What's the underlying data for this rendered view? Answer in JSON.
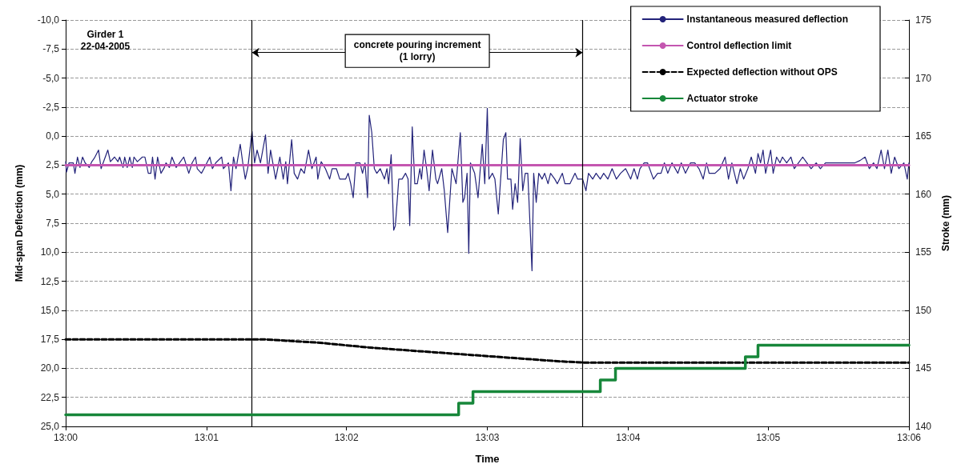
{
  "chart_data": {
    "type": "line",
    "xlabel": "Time",
    "ylabel": "Mid-span Deflection (mm)",
    "y2label": "Stroke (mm)",
    "xlim": [
      13,
      13.1
    ],
    "xticks": [
      {
        "value": 13,
        "label": "13:00"
      },
      {
        "value": 13.0167,
        "label": "13:01"
      },
      {
        "value": 13.0333,
        "label": "13:02"
      },
      {
        "value": 13.05,
        "label": "13:03"
      },
      {
        "value": 13.0667,
        "label": "13:04"
      },
      {
        "value": 13.0833,
        "label": "13:05"
      },
      {
        "value": 13.1,
        "label": "13:06"
      }
    ],
    "ylim": [
      25,
      -10
    ],
    "yticks": [
      {
        "value": -10,
        "label": "-10,0"
      },
      {
        "value": -7.5,
        "label": "-7,5"
      },
      {
        "value": -5,
        "label": "-5,0"
      },
      {
        "value": -2.5,
        "label": "-2,5"
      },
      {
        "value": 0,
        "label": "0,0"
      },
      {
        "value": 2.5,
        "label": "2,5"
      },
      {
        "value": 5,
        "label": "5,0"
      },
      {
        "value": 7.5,
        "label": "7,5"
      },
      {
        "value": 10,
        "label": "10,0"
      },
      {
        "value": 12.5,
        "label": "12,5"
      },
      {
        "value": 15,
        "label": "15,0"
      },
      {
        "value": 17.5,
        "label": "17,5"
      },
      {
        "value": 20,
        "label": "20,0"
      },
      {
        "value": 22.5,
        "label": "22,5"
      },
      {
        "value": 25,
        "label": "25,0"
      }
    ],
    "y2lim": [
      140,
      175
    ],
    "y2ticks": [
      140,
      145,
      150,
      155,
      160,
      165,
      170,
      175
    ],
    "grid": "y",
    "legend": "top right",
    "marker": "none",
    "series": [
      {
        "name": "Instantaneous measured deflection",
        "color": "#23237a",
        "x": [
          13.0,
          13.0001,
          13.0004,
          13.0009,
          13.0011,
          13.0014,
          13.0017,
          13.002,
          13.0023,
          13.0028,
          13.0031,
          13.0034,
          13.0039,
          13.0042,
          13.0045,
          13.005,
          13.0053,
          13.0058,
          13.0062,
          13.0064,
          13.0068,
          13.007,
          13.0073,
          13.0076,
          13.0079,
          13.0081,
          13.0085,
          13.0091,
          13.0094,
          13.0098,
          13.0101,
          13.0103,
          13.0106,
          13.0109,
          13.0113,
          13.0117,
          13.0119,
          13.0123,
          13.0126,
          13.0131,
          13.0135,
          13.014,
          13.0146,
          13.015,
          13.0154,
          13.0156,
          13.0161,
          13.0164,
          13.0171,
          13.0174,
          13.0178,
          13.0185,
          13.0187,
          13.0193,
          13.0196,
          13.0199,
          13.0202,
          13.0207,
          13.021,
          13.0213,
          13.0216,
          13.0221,
          13.0224,
          13.0227,
          13.0231,
          13.0237,
          13.024,
          13.0243,
          13.0249,
          13.0254,
          13.0258,
          13.0261,
          13.0263,
          13.0268,
          13.0271,
          13.0275,
          13.0279,
          13.0283,
          13.0288,
          13.0292,
          13.0297,
          13.0299,
          13.0303,
          13.0308,
          13.0313,
          13.0316,
          13.0321,
          13.0325,
          13.0332,
          13.0335,
          13.0338,
          13.0341,
          13.0344,
          13.0349,
          13.0352,
          13.0355,
          13.0358,
          13.036,
          13.0363,
          13.0366,
          13.0369,
          13.0373,
          13.0378,
          13.0381,
          13.0383,
          13.0386,
          13.0389,
          13.0391,
          13.0395,
          13.0399,
          13.0403,
          13.0406,
          13.0408,
          13.0411,
          13.0414,
          13.0417,
          13.042,
          13.0422,
          13.0425,
          13.0428,
          13.0431,
          13.0435,
          13.0439,
          13.0441,
          13.0446,
          13.0449,
          13.0453,
          13.0458,
          13.0463,
          13.0468,
          13.0471,
          13.0473,
          13.0476,
          13.0478,
          13.048,
          13.0485,
          13.0489,
          13.0494,
          13.0497,
          13.05,
          13.0502,
          13.0506,
          13.0509,
          13.0513,
          13.0519,
          13.0522,
          13.0524,
          13.0528,
          13.053,
          13.0533,
          13.0536,
          13.0539,
          13.0542,
          13.0545,
          13.0548,
          13.0553,
          13.0555,
          13.0558,
          13.0561,
          13.0565,
          13.0568,
          13.0572,
          13.0575,
          13.058,
          13.0583,
          13.0589,
          13.0592,
          13.0598,
          13.0604,
          13.0607,
          13.0613,
          13.0617,
          13.062,
          13.0625,
          13.0629,
          13.0634,
          13.0638,
          13.0643,
          13.0648,
          13.0653,
          13.0658,
          13.0664,
          13.067,
          13.0674,
          13.0678,
          13.0681,
          13.0686,
          13.069,
          13.0697,
          13.0702,
          13.0706,
          13.071,
          13.0714,
          13.0719,
          13.0726,
          13.073,
          13.0735,
          13.0741,
          13.0746,
          13.0751,
          13.0756,
          13.076,
          13.0763,
          13.077,
          13.0776,
          13.0782,
          13.0786,
          13.079,
          13.0796,
          13.08,
          13.0804,
          13.0809,
          13.0813,
          13.0818,
          13.0821,
          13.0824,
          13.0827,
          13.083,
          13.0836,
          13.0839,
          13.0843,
          13.0847,
          13.085,
          13.0855,
          13.086,
          13.0864,
          13.0869,
          13.0874,
          13.0879,
          13.0884,
          13.089,
          13.0895,
          13.0901,
          13.0907,
          13.0914,
          13.092,
          13.0928,
          13.0936,
          13.0942,
          13.0948,
          13.0953,
          13.0958,
          13.0962,
          13.0967,
          13.0971,
          13.0975,
          13.0979,
          13.0983,
          13.0988,
          13.0994,
          13.0998,
          13.1
        ],
        "values": [
          2.2,
          3.1,
          2.3,
          2.3,
          3.2,
          1.8,
          2.7,
          1.8,
          2.3,
          2.7,
          2.2,
          1.9,
          1.2,
          2.8,
          2.2,
          1.2,
          2.2,
          1.8,
          2.2,
          1.8,
          2.7,
          1.8,
          2.7,
          1.8,
          2.7,
          1.8,
          2.2,
          1.8,
          1.8,
          3.2,
          3.2,
          1.8,
          3.7,
          1.8,
          3.2,
          2.7,
          2.3,
          2.7,
          1.8,
          2.7,
          2.3,
          1.8,
          3.2,
          2.3,
          1.8,
          2.8,
          3.2,
          2.8,
          1.8,
          2.8,
          2.3,
          1.8,
          2.8,
          2.3,
          4.7,
          1.8,
          2.8,
          0.7,
          2.3,
          3.7,
          2.7,
          -0.4,
          2.3,
          1.2,
          2.3,
          -0.1,
          3.2,
          1.2,
          3.7,
          1.8,
          3.7,
          2.2,
          4.1,
          0.3,
          3.2,
          3.7,
          2.8,
          3.2,
          1.2,
          2.8,
          1.8,
          3.7,
          2.2,
          2.8,
          3.7,
          2.8,
          2.8,
          3.7,
          3.7,
          3.2,
          4.1,
          5.3,
          2.3,
          2.3,
          3.2,
          2.3,
          5.3,
          -1.8,
          -0.3,
          2.8,
          3.2,
          2.8,
          3.7,
          2.8,
          4.1,
          1.6,
          8.1,
          7.7,
          3.7,
          3.7,
          3.2,
          3.7,
          7.7,
          -0.8,
          4.1,
          4.1,
          2.8,
          3.7,
          1.2,
          2.8,
          4.7,
          1.2,
          3.7,
          4.1,
          2.8,
          4.7,
          8.3,
          2.8,
          4.1,
          -0.3,
          5.7,
          5.3,
          3.2,
          10.1,
          2.3,
          3.2,
          5.3,
          0.7,
          4.1,
          -2.4,
          3.7,
          3.2,
          3.7,
          6.7,
          0.3,
          -0.3,
          3.7,
          3.7,
          6.3,
          4.1,
          5.7,
          0.2,
          4.7,
          3.2,
          3.2,
          11.6,
          3.2,
          5.7,
          3.2,
          3.7,
          3.2,
          4.1,
          3.2,
          3.7,
          4.1,
          3.2,
          4.1,
          4.1,
          3.2,
          3.7,
          3.7,
          4.7,
          3.2,
          3.7,
          3.2,
          3.7,
          3.2,
          3.7,
          2.8,
          3.7,
          3.2,
          2.8,
          3.7,
          2.8,
          3.7,
          2.8,
          2.3,
          2.3,
          3.7,
          3.2,
          3.2,
          2.3,
          3.2,
          2.3,
          3.2,
          2.3,
          3.2,
          2.3,
          2.3,
          2.8,
          3.7,
          2.3,
          3.2,
          3.2,
          2.8,
          1.8,
          3.7,
          2.3,
          4.1,
          2.8,
          3.7,
          2.8,
          1.8,
          3.2,
          1.5,
          2.3,
          1.2,
          3.2,
          1.2,
          3.2,
          1.8,
          2.3,
          1.8,
          2.3,
          1.8,
          2.8,
          2.3,
          1.8,
          2.3,
          2.8,
          2.3,
          2.8,
          2.3,
          2.3,
          2.3,
          2.3,
          2.3,
          2.3,
          2.1,
          1.8,
          2.8,
          2.3,
          2.8,
          1.2,
          2.8,
          1.2,
          3.2,
          1.8,
          2.8,
          2.3,
          3.7,
          2.3
        ]
      },
      {
        "name": "Control deflection limit",
        "color": "#c456b0",
        "x": [
          13,
          13.1
        ],
        "values": [
          2.5,
          2.5
        ]
      },
      {
        "name": "Expected deflection without OPS",
        "color": "#000000",
        "line_style": "dashed",
        "x": [
          13,
          13.0235,
          13.0302,
          13.0359,
          13.0415,
          13.0472,
          13.0529,
          13.0586,
          13.0615,
          13.1
        ],
        "values": [
          17.5,
          17.5,
          17.8,
          18.2,
          18.5,
          18.8,
          19.1,
          19.4,
          19.5,
          19.5
        ]
      },
      {
        "name": "Actuator stroke",
        "type": "step",
        "axis": "y2",
        "color": "#17873a",
        "x": [
          13,
          13.0466,
          13.0483,
          13.0634,
          13.0652,
          13.0806,
          13.0821,
          13.1
        ],
        "values": [
          141,
          142,
          143,
          144,
          145,
          146,
          147,
          147
        ]
      }
    ],
    "ref_lines": [
      {
        "axis": "x",
        "value": 13.0221,
        "color": "#000000"
      },
      {
        "axis": "x",
        "value": 13.0613,
        "color": "#000000"
      }
    ],
    "annotations": [
      "Girder 1\n22-04-2005",
      "concrete pouring increment\n(1 lorry)"
    ]
  }
}
